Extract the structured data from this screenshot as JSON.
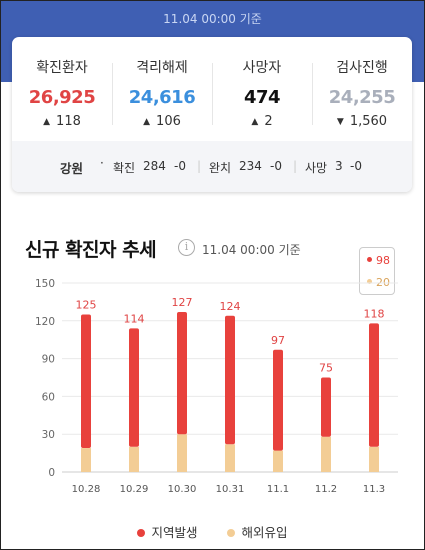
{
  "header": {
    "date": "11.04 00:00 기준"
  },
  "summary": {
    "stats": [
      {
        "label": "확진환자",
        "value": "26,925",
        "change": "118",
        "direction": "up",
        "color": "#e04444"
      },
      {
        "label": "격리해제",
        "value": "24,616",
        "change": "106",
        "direction": "up",
        "color": "#3b8fdd"
      },
      {
        "label": "사망자",
        "value": "474",
        "change": "2",
        "direction": "up",
        "color": "#111111"
      },
      {
        "label": "검사진행",
        "value": "24,255",
        "change": "1,560",
        "direction": "down",
        "color": "#a9afbb"
      }
    ],
    "region": {
      "name": "강원",
      "confirmed_label": "확진",
      "confirmed": "284",
      "confirmed_change": "-0",
      "released_label": "완치",
      "released": "234",
      "released_change": "-0",
      "deaths_label": "사망",
      "deaths": "3",
      "deaths_change": "-0"
    }
  },
  "chart_section": {
    "title": "신규 확진자 추세",
    "info_icon": "info-icon",
    "date": "11.04 00:00 기준",
    "tooltip": {
      "local": "98",
      "overseas": "20"
    }
  },
  "chart_data": {
    "type": "bar",
    "stacked": true,
    "categories": [
      "10.28",
      "10.29",
      "10.30",
      "10.31",
      "11.1",
      "11.2",
      "11.3"
    ],
    "series": [
      {
        "name": "지역발생",
        "values": [
          106,
          94,
          97,
          102,
          80,
          47,
          98
        ],
        "color": "#e8413c"
      },
      {
        "name": "해외유입",
        "values": [
          19,
          20,
          30,
          22,
          17,
          28,
          20
        ],
        "color": "#f3cd95"
      }
    ],
    "totals": [
      125,
      114,
      127,
      124,
      97,
      75,
      118
    ],
    "yticks": [
      0,
      30,
      60,
      90,
      120,
      150
    ],
    "ylim": [
      0,
      150
    ],
    "grid": true,
    "legend": "bottom"
  }
}
